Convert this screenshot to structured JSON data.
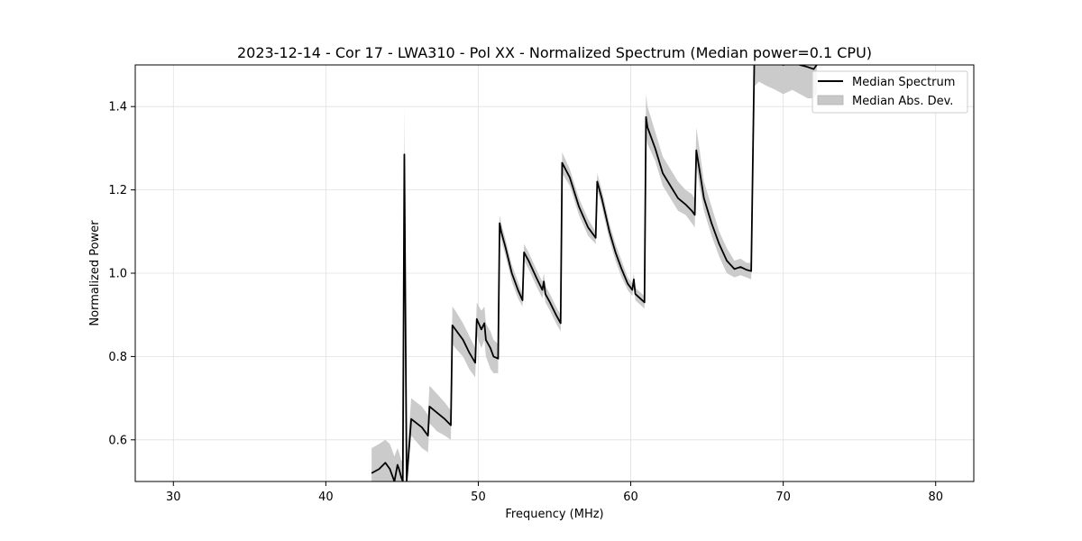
{
  "chart_data": {
    "type": "area",
    "title": "2023-12-14 - Cor 17 - LWA310 - Pol XX - Normalized Spectrum (Median power=0.1 CPU)",
    "xlabel": "Frequency (MHz)",
    "ylabel": "Normalized Power",
    "xlim": [
      27.5,
      82.5
    ],
    "ylim": [
      0.5,
      1.5
    ],
    "xticks": [
      30,
      40,
      50,
      60,
      70,
      80
    ],
    "yticks": [
      0.6,
      0.8,
      1.0,
      1.2,
      1.4
    ],
    "grid": true,
    "legend_position": "top-right",
    "series": [
      {
        "name": "Median Spectrum",
        "style": "line",
        "color": "#000000",
        "x": [
          43.0,
          43.5,
          43.9,
          44.2,
          44.5,
          44.7,
          44.8,
          44.95,
          45.05,
          45.15,
          45.3,
          45.6,
          46.3,
          46.7,
          46.8,
          47.3,
          47.8,
          48.2,
          48.3,
          48.5,
          49.0,
          49.4,
          49.8,
          49.9,
          50.2,
          50.4,
          50.5,
          50.8,
          51.0,
          51.3,
          51.4,
          51.5,
          51.8,
          52.2,
          52.6,
          52.9,
          53.0,
          53.3,
          53.8,
          54.2,
          54.3,
          54.4,
          54.7,
          55.1,
          55.4,
          55.5,
          56.0,
          56.6,
          57.2,
          57.7,
          57.8,
          58.1,
          58.6,
          59.0,
          59.4,
          59.8,
          60.1,
          60.2,
          60.3,
          60.6,
          60.9,
          61.0,
          61.1,
          61.6,
          62.1,
          62.6,
          63.1,
          63.6,
          64.0,
          64.2,
          64.3,
          64.5,
          64.8,
          65.3,
          65.8,
          66.3,
          66.8,
          67.2,
          67.6,
          67.9,
          68.1,
          68.15,
          68.4,
          68.9,
          69.5,
          70.0,
          70.6,
          71.1,
          71.6,
          72.0,
          72.2
        ],
        "values": [
          0.52,
          0.53,
          0.545,
          0.53,
          0.5,
          0.54,
          0.53,
          0.51,
          0.5,
          1.285,
          0.5,
          0.65,
          0.63,
          0.61,
          0.68,
          0.665,
          0.65,
          0.635,
          0.875,
          0.865,
          0.84,
          0.81,
          0.785,
          0.89,
          0.865,
          0.88,
          0.84,
          0.82,
          0.8,
          0.795,
          1.12,
          1.1,
          1.06,
          1.0,
          0.96,
          0.935,
          1.05,
          1.03,
          0.99,
          0.96,
          0.98,
          0.95,
          0.93,
          0.9,
          0.88,
          1.265,
          1.23,
          1.16,
          1.11,
          1.085,
          1.22,
          1.18,
          1.1,
          1.05,
          1.01,
          0.975,
          0.96,
          0.985,
          0.95,
          0.94,
          0.93,
          1.375,
          1.35,
          1.3,
          1.24,
          1.21,
          1.18,
          1.165,
          1.15,
          1.14,
          1.295,
          1.25,
          1.18,
          1.12,
          1.07,
          1.03,
          1.01,
          1.015,
          1.008,
          1.005,
          1.5,
          1.51,
          1.52,
          1.515,
          1.505,
          1.5,
          1.505,
          1.5,
          1.495,
          1.49,
          1.5
        ]
      },
      {
        "name": "Median Abs. Dev.",
        "style": "band",
        "color": "#c8c8c8",
        "x": [
          43.0,
          43.5,
          43.9,
          44.2,
          44.5,
          44.7,
          44.8,
          44.95,
          45.05,
          45.15,
          45.3,
          45.6,
          46.3,
          46.7,
          46.8,
          47.3,
          47.8,
          48.2,
          48.3,
          48.5,
          49.0,
          49.4,
          49.8,
          49.9,
          50.2,
          50.4,
          50.5,
          50.8,
          51.0,
          51.3,
          51.4,
          51.5,
          51.8,
          52.2,
          52.6,
          52.9,
          53.0,
          53.3,
          53.8,
          54.2,
          54.3,
          54.4,
          54.7,
          55.1,
          55.4,
          55.5,
          56.0,
          56.6,
          57.2,
          57.7,
          57.8,
          58.1,
          58.6,
          59.0,
          59.4,
          59.8,
          60.1,
          60.2,
          60.3,
          60.6,
          60.9,
          61.0,
          61.1,
          61.6,
          62.1,
          62.6,
          63.1,
          63.6,
          64.0,
          64.2,
          64.3,
          64.5,
          64.8,
          65.3,
          65.8,
          66.3,
          66.8,
          67.2,
          67.6,
          67.9,
          68.1,
          68.15,
          68.4,
          68.9,
          69.5,
          70.0,
          70.6,
          71.1,
          71.6,
          72.0,
          72.2
        ],
        "lower": [
          0.5,
          0.5,
          0.5,
          0.5,
          0.5,
          0.5,
          0.5,
          0.5,
          0.5,
          1.2,
          0.5,
          0.61,
          0.58,
          0.57,
          0.64,
          0.62,
          0.61,
          0.6,
          0.83,
          0.82,
          0.8,
          0.77,
          0.75,
          0.85,
          0.82,
          0.84,
          0.8,
          0.77,
          0.76,
          0.76,
          1.1,
          1.08,
          1.04,
          0.98,
          0.94,
          0.92,
          1.03,
          1.01,
          0.97,
          0.94,
          0.96,
          0.93,
          0.91,
          0.88,
          0.86,
          1.24,
          1.21,
          1.14,
          1.09,
          1.07,
          1.2,
          1.16,
          1.08,
          1.03,
          0.99,
          0.96,
          0.945,
          0.97,
          0.935,
          0.925,
          0.915,
          1.33,
          1.31,
          1.27,
          1.21,
          1.18,
          1.15,
          1.14,
          1.12,
          1.11,
          1.26,
          1.21,
          1.15,
          1.09,
          1.04,
          1.0,
          0.99,
          0.995,
          0.99,
          0.985,
          1.45,
          1.45,
          1.46,
          1.45,
          1.44,
          1.43,
          1.44,
          1.43,
          1.42,
          1.42,
          1.43
        ],
        "upper": [
          0.58,
          0.59,
          0.6,
          0.59,
          0.56,
          0.58,
          0.57,
          0.55,
          0.55,
          1.4,
          0.55,
          0.7,
          0.68,
          0.66,
          0.73,
          0.71,
          0.69,
          0.67,
          0.92,
          0.91,
          0.88,
          0.85,
          0.82,
          0.93,
          0.91,
          0.92,
          0.88,
          0.86,
          0.84,
          0.83,
          1.14,
          1.12,
          1.08,
          1.02,
          0.98,
          0.95,
          1.07,
          1.05,
          1.01,
          0.98,
          1.0,
          0.97,
          0.95,
          0.92,
          0.9,
          1.29,
          1.25,
          1.18,
          1.13,
          1.1,
          1.24,
          1.2,
          1.12,
          1.07,
          1.03,
          0.99,
          0.975,
          1.0,
          0.965,
          0.955,
          0.945,
          1.43,
          1.4,
          1.34,
          1.28,
          1.25,
          1.22,
          1.2,
          1.19,
          1.18,
          1.35,
          1.3,
          1.22,
          1.16,
          1.1,
          1.06,
          1.03,
          1.035,
          1.025,
          1.025,
          1.5,
          1.5,
          1.5,
          1.5,
          1.5,
          1.5,
          1.5,
          1.5,
          1.5,
          1.5,
          1.5
        ]
      }
    ]
  }
}
